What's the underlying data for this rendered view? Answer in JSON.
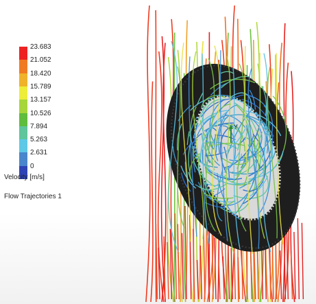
{
  "legend": {
    "ticks": [
      "23.683",
      "21.052",
      "18.420",
      "15.789",
      "13.157",
      "10.526",
      "7.894",
      "5.263",
      "2.631",
      "0"
    ],
    "colors": [
      "#ee2222",
      "#f07a22",
      "#f0b22a",
      "#eded3a",
      "#a6d63a",
      "#5fbc3c",
      "#5fc59d",
      "#5ec8e6",
      "#4a86cc",
      "#2f43b4"
    ],
    "parameter": "Velocity [m/s]",
    "plot_name": "Flow Trajectories 1"
  },
  "scene": {
    "object": "tire-with-rim",
    "tire_color": "#2a2a2a",
    "rim_color": "#d8d8d8",
    "axis_triad_label": "Y"
  }
}
